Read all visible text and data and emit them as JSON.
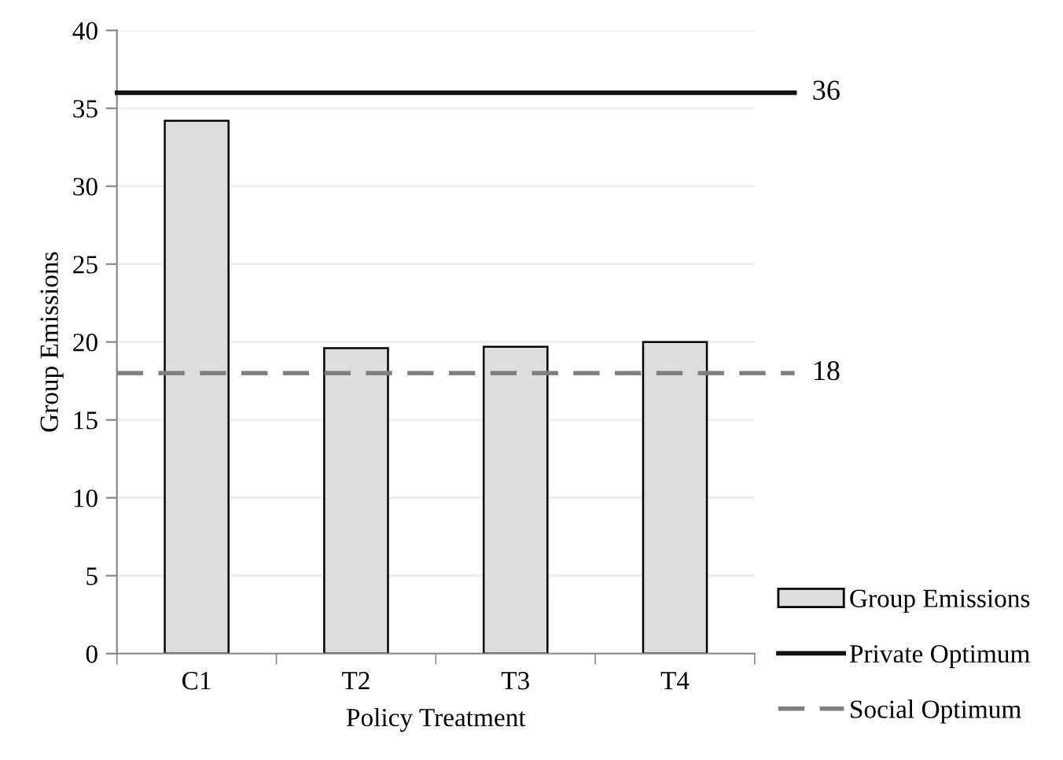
{
  "chart_data": {
    "type": "bar",
    "xlabel": "Policy Treatment",
    "ylabel": "Group Emissions",
    "categories": [
      "C1",
      "T2",
      "T3",
      "T4"
    ],
    "series": [
      {
        "name": "Group Emissions",
        "color": "#dcdddf",
        "values": [
          34.2,
          19.6,
          19.7,
          20.0
        ]
      }
    ],
    "ref_lines": [
      {
        "axis": "y",
        "value": 36,
        "label": "Private Optimum",
        "color": "#111111",
        "line_style": "solid"
      },
      {
        "axis": "y",
        "value": 18,
        "label": "Social Optimum",
        "color": "#7f7f7f",
        "line_style": "dashed"
      }
    ],
    "annotations": [
      "36",
      "18"
    ],
    "ylim": [
      0,
      40
    ],
    "yticks": [
      0,
      5,
      10,
      15,
      20,
      25,
      30,
      35,
      40
    ],
    "grid": "y",
    "legend": "bottom right"
  }
}
